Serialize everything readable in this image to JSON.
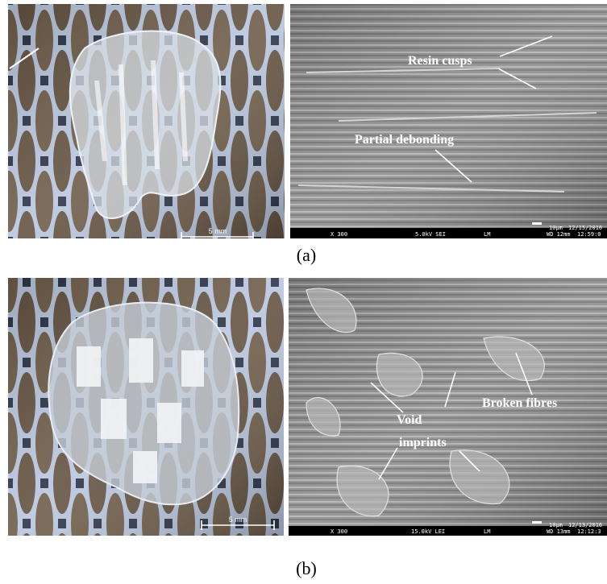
{
  "panels": [
    {
      "label": "(a)",
      "photo": {
        "scale_bar": "5 mm"
      },
      "sem": {
        "annotations": [
          "Resin cusps",
          "Partial debonding"
        ],
        "info": [
          "X 300",
          "5.0kV SEI",
          "LM",
          "10µm",
          "12/15/2016",
          "WD 12mm",
          "12:59:0"
        ]
      }
    },
    {
      "label": "(b)",
      "photo": {
        "scale_bar": "5 mm"
      },
      "sem": {
        "annotations": [
          "Void",
          "imprints",
          "Broken fibres"
        ],
        "info": [
          "X 300",
          "15.0kV LEI",
          "LM",
          "10µm",
          "12/13/2016",
          "WD 13mm",
          "12:12:3"
        ]
      }
    }
  ]
}
